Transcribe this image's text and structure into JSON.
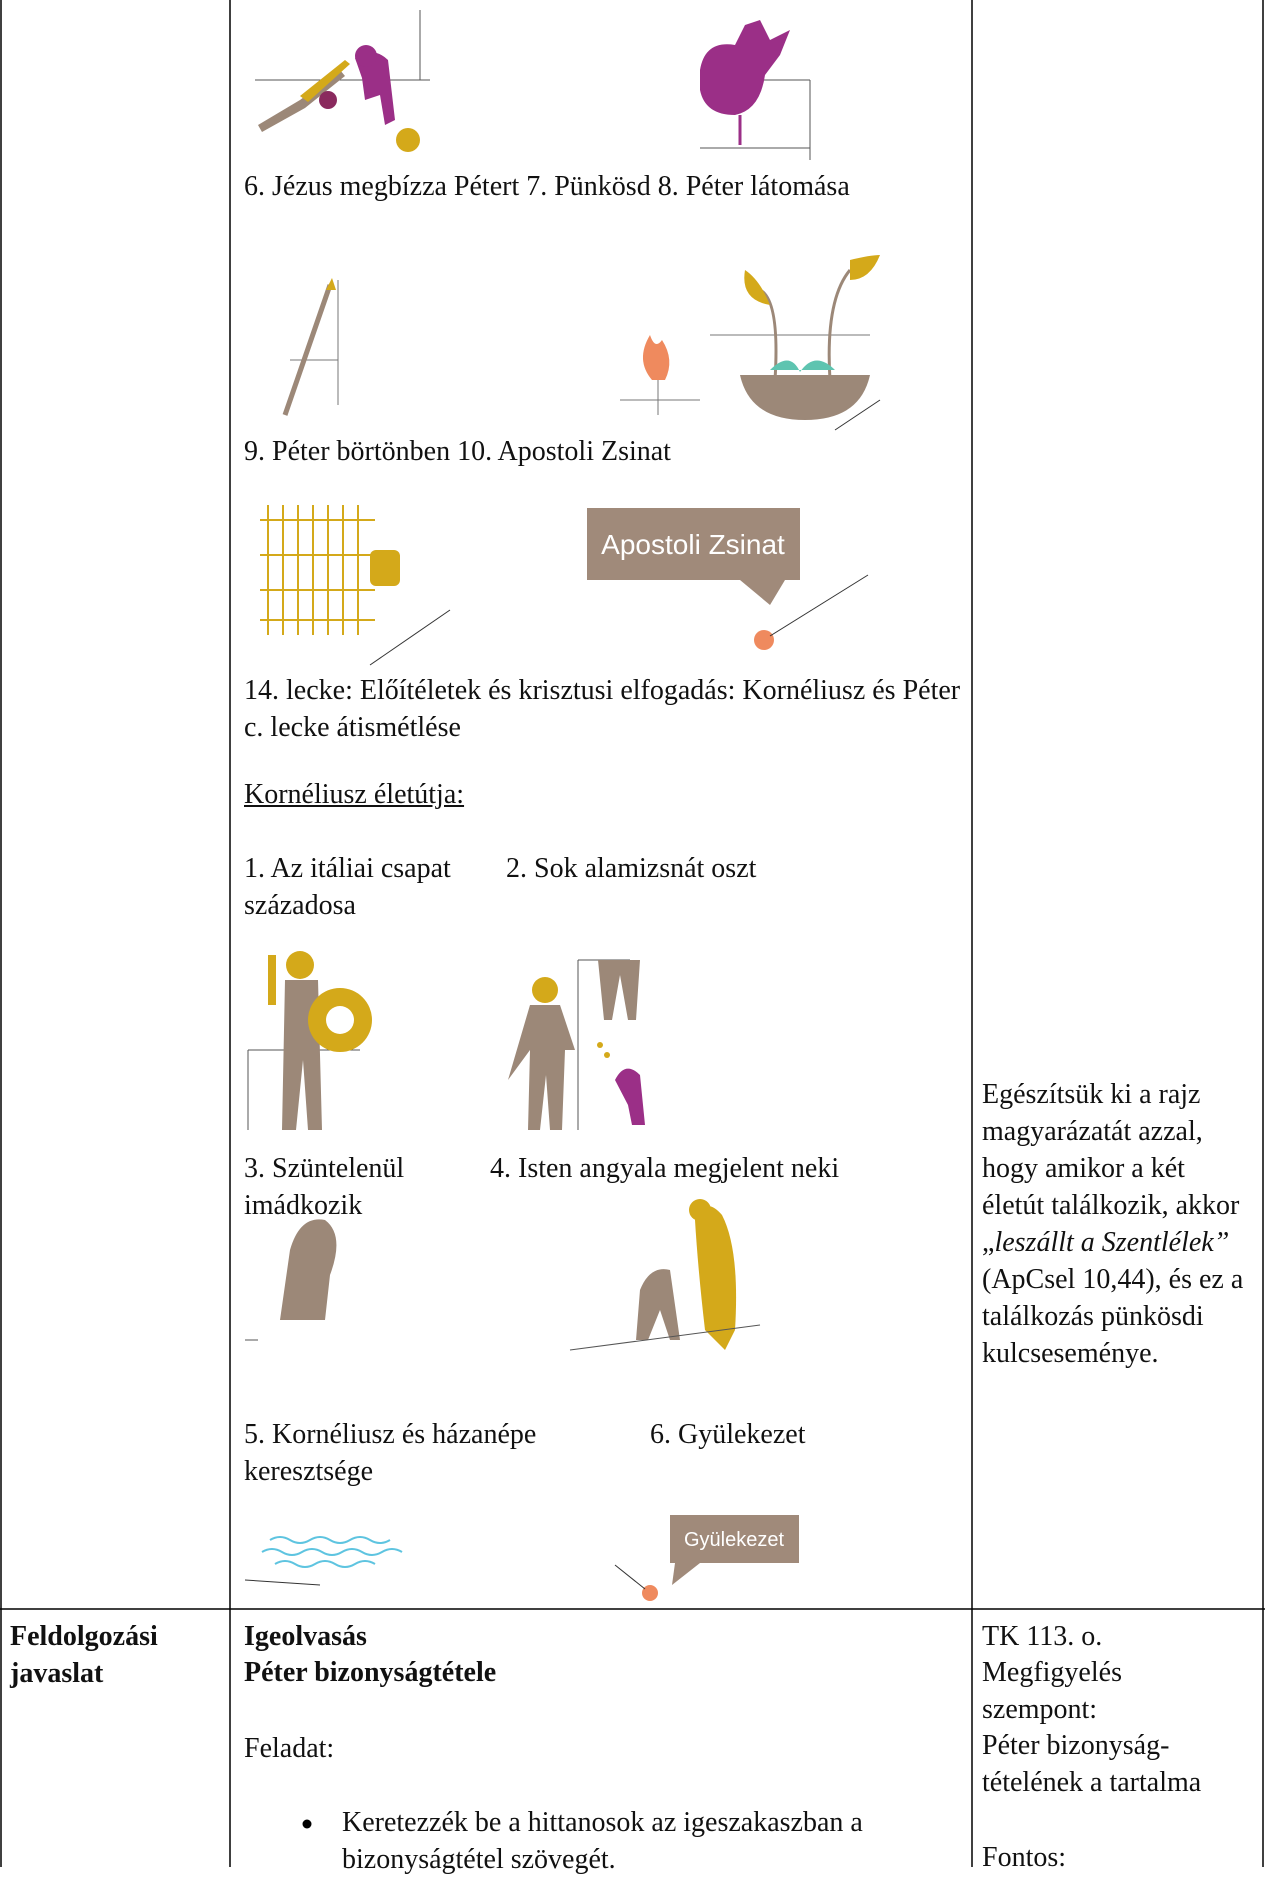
{
  "illustration_captions": [
    "6. Jézus megbízza Pétert 7. Pünkösd 8. Péter látomása",
    "9. Péter börtönben 10. Apostoli Zsinat"
  ],
  "speech_bubbles": [
    "Apostoli Zsinat",
    "Gyülekezet"
  ],
  "lesson": "14. lecke: Előítéletek és krisztusi elfogadás: Kornéliusz és Péter c. lecke átismétlése",
  "life_path": {
    "heading": "Kornéliusz életútja:",
    "steps": [
      "1. Az itáliai csapat századosa",
      "2. Sok alamizsnát oszt",
      "3. Szüntelenül imádkozik",
      "4. Isten angyala megjelent neki",
      "5. Kornéliusz és házanépe keresztsége",
      "6. Gyülekezet"
    ]
  },
  "note": {
    "before": "Egészítsük ki a rajz magyarázatát azzal, hogy amikor a két életút találkozik, akkor „",
    "italic": "leszállt a Szentlélek”",
    "after": " (ApCsel 10,44), és ez a találkozás pünkösdi kulcseseménye."
  },
  "processing": {
    "label": "Feldolgozási javaslat",
    "headings": [
      "Igeolvasás",
      "Péter bizonyságtétele"
    ],
    "task": "Feladat:",
    "bullets": [
      "Keretezzék be a hittanosok az igeszakaszban a bizonyságtétel szövegét."
    ],
    "right": [
      "TK 113. o.",
      "Megfigyelés szempont:",
      "Péter bizonyság-tételének a tartalma",
      "Fontos:"
    ]
  }
}
